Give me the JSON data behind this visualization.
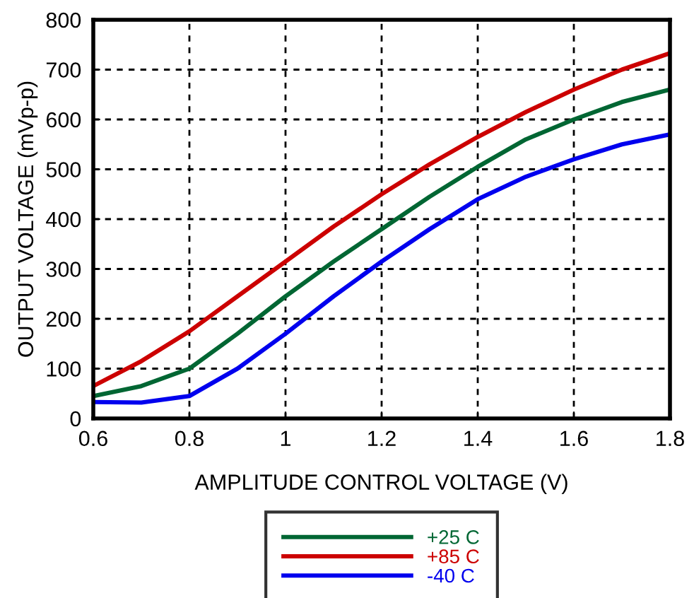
{
  "chart_data": {
    "type": "line",
    "xlabel": "AMPLITUDE CONTROL VOLTAGE (V)",
    "ylabel": "OUTPUT VOLTAGE (mVp-p)",
    "x": [
      0.6,
      0.7,
      0.8,
      0.9,
      1.0,
      1.1,
      1.2,
      1.3,
      1.4,
      1.5,
      1.6,
      1.7,
      1.8
    ],
    "series": [
      {
        "name": "+25 C",
        "color": "#006633",
        "values": [
          45,
          65,
          100,
          170,
          245,
          315,
          380,
          445,
          505,
          560,
          600,
          635,
          660
        ]
      },
      {
        "name": "+85 C",
        "color": "#cc0000",
        "values": [
          65,
          115,
          175,
          245,
          315,
          385,
          450,
          510,
          565,
          615,
          660,
          700,
          733
        ]
      },
      {
        "name": "-40 C",
        "color": "#0000ee",
        "values": [
          33,
          32,
          45,
          100,
          170,
          245,
          315,
          380,
          440,
          485,
          520,
          550,
          570
        ]
      }
    ],
    "xlim": [
      0.6,
      1.8
    ],
    "xticks": [
      0.6,
      0.8,
      1,
      1.2,
      1.4,
      1.6,
      1.8
    ],
    "ylim": [
      0,
      800
    ],
    "yticks": [
      0,
      100,
      200,
      300,
      400,
      500,
      600,
      700,
      800
    ],
    "grid": true,
    "legend": "bottom",
    "line_style": "solid",
    "marker": "none"
  }
}
